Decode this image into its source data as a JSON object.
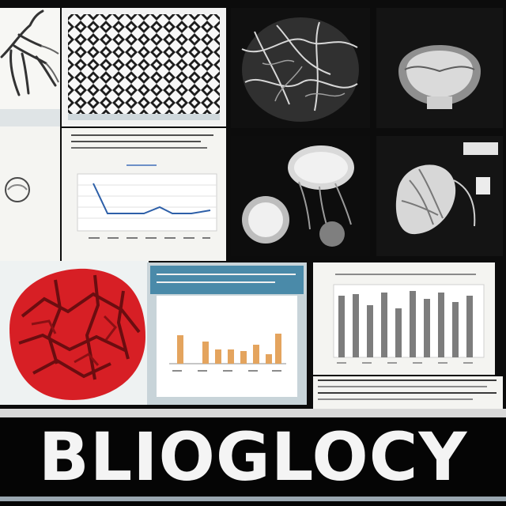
{
  "title": "BLIOGLOCY",
  "colors": {
    "background": "#0c0c0c",
    "paper": "#f4f4f1",
    "accent_red": "#d71f25",
    "chart_blue": "#2d5fa8",
    "chart_orange": "#e4a45e",
    "chart_gray": "#7d7d7d",
    "banner_blue": "#4a8aa9"
  },
  "icons": [
    "neuron-sketch-icon",
    "cell-mesh-icon",
    "tissue-network-icon",
    "skull-cross-section-icon",
    "fungus-cluster-icon",
    "leaf-specimen-icon",
    "red-cell-tissue-icon"
  ]
}
